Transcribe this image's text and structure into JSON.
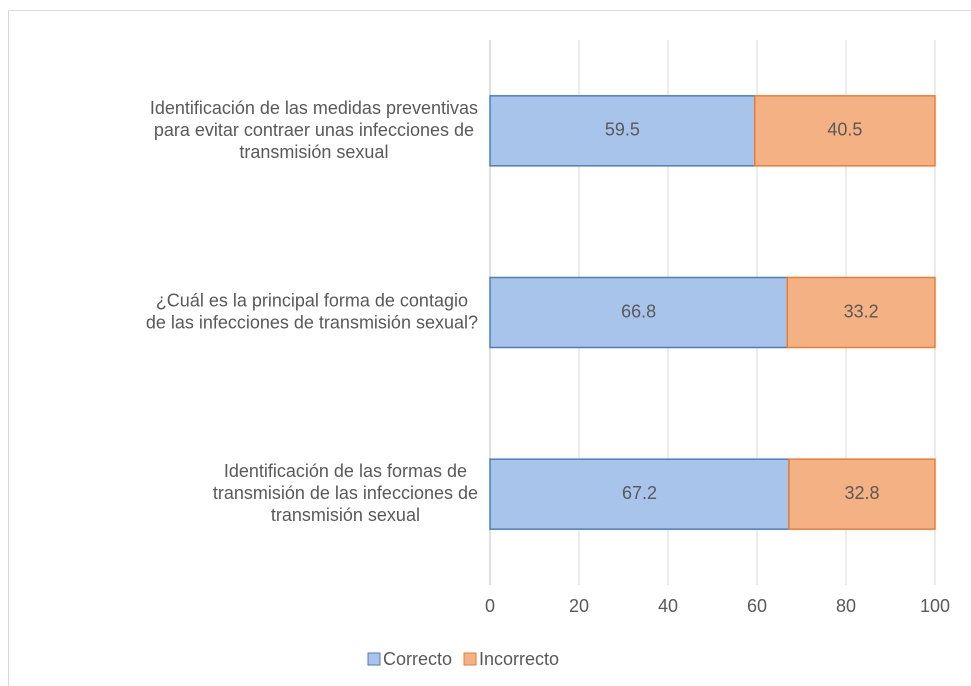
{
  "chart_data": {
    "type": "stacked_bar_horizontal",
    "categories": [
      "Identificación de las medidas preventivas\npara evitar contraer unas infecciones de\ntransmisión sexual",
      "¿Cuál es la principal forma de contagio\nde las infecciones de transmisión sexual?",
      "Identificación de las formas de\ntransmisión de las infecciones de\ntransmisión sexual"
    ],
    "series": [
      {
        "name": "Correcto",
        "color": "#a9c4eb",
        "values": [
          59.5,
          66.8,
          67.2
        ]
      },
      {
        "name": "Incorrecto",
        "color": "#f4b183",
        "values": [
          40.5,
          33.2,
          32.8
        ]
      }
    ],
    "xlim": [
      0,
      100
    ],
    "xticks": [
      0,
      20,
      40,
      60,
      80,
      100
    ],
    "grid": true,
    "legend": "bottom"
  }
}
